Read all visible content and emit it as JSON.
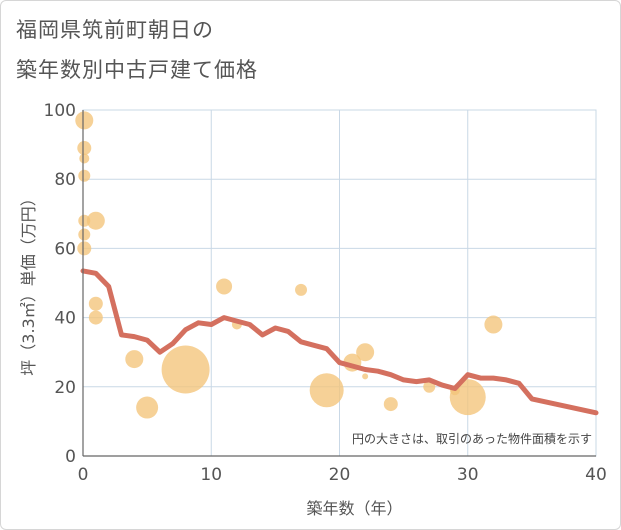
{
  "title_line1": "福岡県筑前町朝日の",
  "title_line2": "築年数別中古戸建て価格",
  "chart_data": {
    "type": "scatter",
    "title": "福岡県筑前町朝日の築年数別中古戸建て価格",
    "xlabel": "築年数（年）",
    "ylabel": "坪（3.3㎡）単価（万円）",
    "xlim": [
      0,
      40
    ],
    "ylim": [
      0,
      100
    ],
    "xticks": [
      0,
      10,
      20,
      30,
      40
    ],
    "yticks": [
      0,
      20,
      40,
      60,
      80,
      100
    ],
    "grid": true,
    "note": "円の大きさは、取引のあった物件面積を示す",
    "colors": {
      "bubble": "#f3c47a",
      "line": "#d4705f",
      "grid": "#c9d8e6",
      "axis": "#666666",
      "text": "#555555"
    },
    "bubbles": [
      {
        "x": 0.1,
        "y": 97,
        "size": 9
      },
      {
        "x": 0.1,
        "y": 89,
        "size": 7
      },
      {
        "x": 0.1,
        "y": 86,
        "size": 5
      },
      {
        "x": 0.1,
        "y": 81,
        "size": 6
      },
      {
        "x": 0.1,
        "y": 68,
        "size": 6
      },
      {
        "x": 0.1,
        "y": 64,
        "size": 6
      },
      {
        "x": 0.1,
        "y": 60,
        "size": 7
      },
      {
        "x": 1,
        "y": 68,
        "size": 9
      },
      {
        "x": 1,
        "y": 44,
        "size": 7
      },
      {
        "x": 1,
        "y": 40,
        "size": 7
      },
      {
        "x": 4,
        "y": 28,
        "size": 9
      },
      {
        "x": 5,
        "y": 14,
        "size": 11
      },
      {
        "x": 8,
        "y": 25,
        "size": 24
      },
      {
        "x": 11,
        "y": 49,
        "size": 8
      },
      {
        "x": 12,
        "y": 38,
        "size": 5
      },
      {
        "x": 17,
        "y": 48,
        "size": 6
      },
      {
        "x": 19,
        "y": 19,
        "size": 17
      },
      {
        "x": 21,
        "y": 27,
        "size": 9
      },
      {
        "x": 22,
        "y": 30,
        "size": 9
      },
      {
        "x": 22,
        "y": 23,
        "size": 3
      },
      {
        "x": 24,
        "y": 15,
        "size": 7
      },
      {
        "x": 27,
        "y": 20,
        "size": 6
      },
      {
        "x": 29,
        "y": 19,
        "size": 5
      },
      {
        "x": 30,
        "y": 17,
        "size": 18
      },
      {
        "x": 32,
        "y": 38,
        "size": 9
      }
    ],
    "trend": {
      "x": [
        0,
        1,
        2,
        3,
        4,
        5,
        6,
        7,
        8,
        9,
        10,
        11,
        12,
        13,
        14,
        15,
        16,
        17,
        18,
        19,
        20,
        21,
        22,
        23,
        24,
        25,
        26,
        27,
        28,
        29,
        30,
        31,
        32,
        33,
        34,
        35,
        40
      ],
      "y": [
        53.5,
        52.8,
        49,
        35,
        34.5,
        33.5,
        30,
        32.5,
        36.5,
        38.5,
        38,
        40,
        39,
        38,
        35,
        37,
        36,
        33,
        32,
        31,
        27,
        26,
        25,
        24.5,
        23.5,
        22,
        21.5,
        22,
        20.5,
        19.5,
        23.5,
        22.5,
        22.5,
        22,
        21,
        16.5,
        12.5
      ]
    }
  }
}
